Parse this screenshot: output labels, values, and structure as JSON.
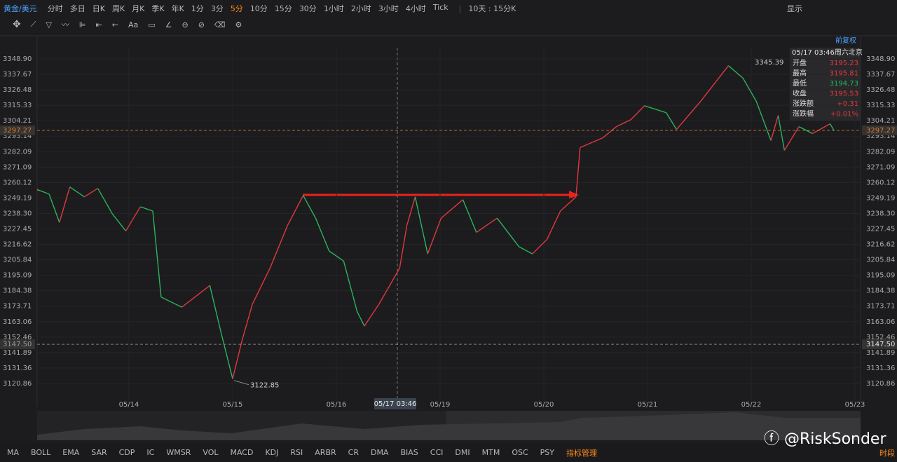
{
  "toolbar": {
    "symbol": "黄金/美元",
    "periods": [
      "分时",
      "多日",
      "日K",
      "周K",
      "月K",
      "季K",
      "年K",
      "1分",
      "3分",
      "5分",
      "10分",
      "15分",
      "30分",
      "1小时",
      "2小时",
      "3小时",
      "4小时",
      "Tick"
    ],
    "active_period_index": 9,
    "active_color": "#ff8c1a",
    "range": "10天 : 15分K",
    "display": "显示",
    "text_tool": "Aa"
  },
  "price_adjust": "前复权",
  "chart_data": {
    "type": "line",
    "x": [
      -0.88,
      -0.77,
      -0.67,
      -0.57,
      -0.43,
      -0.3,
      -0.16,
      -0.03,
      0.11,
      0.23,
      0.31,
      0.51,
      0.78,
      0.89,
      1.0,
      1.09,
      1.19,
      1.36,
      1.53,
      1.68,
      1.8,
      1.93,
      2.07,
      2.2,
      2.27,
      2.41,
      2.61,
      2.68,
      2.76,
      2.88,
      3.01,
      3.22,
      3.35,
      3.55,
      3.76,
      3.89,
      4.03,
      4.16,
      4.31,
      4.35,
      4.57,
      4.7,
      4.84,
      4.97,
      5.18,
      5.28,
      5.51,
      5.78,
      5.92,
      6.05,
      6.19,
      6.26,
      6.32,
      6.46,
      6.59,
      6.76,
      6.8
    ],
    "series": [
      {
        "values": [
          3255,
          3252,
          3232,
          3257,
          3250,
          3256,
          3238,
          3226,
          3243,
          3240,
          3180,
          3173,
          3188,
          3155,
          3124,
          3150,
          3175,
          3200,
          3230,
          3251,
          3235,
          3212,
          3205,
          3170,
          3160,
          3175,
          3200,
          3230,
          3250,
          3210,
          3235,
          3248,
          3225,
          3235,
          3215,
          3210,
          3220,
          3240,
          3250,
          3285,
          3292,
          3300,
          3305,
          3315,
          3310,
          3298,
          3318,
          3344,
          3335,
          3318,
          3290,
          3308,
          3283,
          3300,
          3295,
          3302,
          3297
        ]
      }
    ],
    "up_color": "#e0383e",
    "down_color": "#2bb35e",
    "xlim": [
      -0.885,
      7.054
    ],
    "xticks": [
      {
        "value": 0,
        "label": "05/14"
      },
      {
        "value": 1,
        "label": "05/15"
      },
      {
        "value": 2,
        "label": "05/16"
      },
      {
        "value": 3,
        "label": "05/19"
      },
      {
        "value": 4,
        "label": "05/20"
      },
      {
        "value": 5,
        "label": "05/21"
      },
      {
        "value": 6,
        "label": "05/22"
      },
      {
        "value": 7,
        "label": "05/23"
      }
    ],
    "ylim": [
      3109.9,
      3357.1
    ],
    "log_scale": true,
    "grid": true,
    "yticks": [
      {
        "value": 3348.9,
        "label": "3348.90"
      },
      3337.67,
      3326.48,
      3315.33,
      3304.21,
      3293.14,
      3282.09,
      3271.09,
      3260.12,
      3249.19,
      {
        "value": 3238.3,
        "label": "3238.30"
      },
      3227.45,
      3216.62,
      3205.84,
      3195.09,
      3184.38,
      3173.71,
      3163.06,
      3152.46,
      3141.89,
      3131.36,
      3120.86
    ],
    "reference_lines": [
      {
        "value": 3297.27,
        "color": "#e07b2c"
      },
      {
        "value": 3147.5,
        "label": "3147.50",
        "color": "#9a9a9a"
      }
    ],
    "extremes": {
      "high": 3345.39,
      "low": 3122.85
    },
    "crosshair_label": "05/17 03:46"
  },
  "tooltip": {
    "time": "05/17 03:46周六北京",
    "rows": [
      {
        "label": "开盘",
        "value": "3195.23",
        "color": "#e0383e"
      },
      {
        "label": "最高",
        "value": "3195.81",
        "color": "#e0383e"
      },
      {
        "label": "最低",
        "value": "3194.73",
        "color": "#2bb35e"
      },
      {
        "label": "收盘",
        "value": "3195.53",
        "color": "#e0383e"
      },
      {
        "label": "涨跌额",
        "value": "+0.31",
        "color": "#e0383e"
      },
      {
        "label": "涨跌幅",
        "value": "+0.01%",
        "color": "#e0383e"
      }
    ]
  },
  "indicators": [
    "MA",
    "BOLL",
    "EMA",
    "SAR",
    "CDP",
    "IC",
    "WMSR",
    "VOL",
    "MACD",
    "KDJ",
    "RSI",
    "ARBR",
    "CR",
    "DMA",
    "BIAS",
    "CCI",
    "DMI",
    "MTM",
    "OSC",
    "PSY"
  ],
  "indicator_manager": "指标管理",
  "session": "时段",
  "watermark": "@RiskSonder"
}
